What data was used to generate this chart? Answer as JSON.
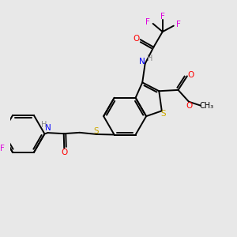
{
  "bg_color": "#e8e8e8",
  "bond_color": "#000000",
  "atom_colors": {
    "S": "#ccaa00",
    "N": "#0000ff",
    "O": "#ff0000",
    "F": "#dd00dd",
    "H": "#888888",
    "C": "#000000"
  },
  "figsize": [
    3.0,
    3.0
  ],
  "dpi": 100,
  "core": {
    "bx": 5.5,
    "by": 5.2
  }
}
